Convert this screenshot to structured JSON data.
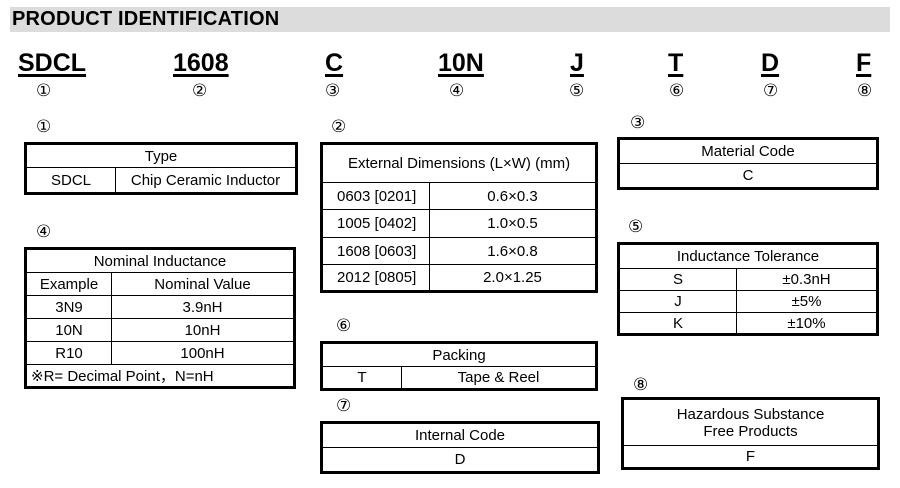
{
  "title": "PRODUCT IDENTIFICATION",
  "codes": [
    {
      "code": "SDCL",
      "num": "①"
    },
    {
      "code": "1608",
      "num": "②"
    },
    {
      "code": "C",
      "num": "③"
    },
    {
      "code": "10N",
      "num": "④"
    },
    {
      "code": "J",
      "num": "⑤"
    },
    {
      "code": "T",
      "num": "⑥"
    },
    {
      "code": "D",
      "num": "⑦"
    },
    {
      "code": "F",
      "num": "⑧"
    }
  ],
  "type": {
    "num": "①",
    "header": "Type",
    "code": "SDCL",
    "desc": "Chip Ceramic Inductor"
  },
  "dimensions": {
    "num": "②",
    "header": "External Dimensions (L×W) (mm)",
    "rows": [
      [
        "0603 [0201]",
        "0.6×0.3"
      ],
      [
        "1005 [0402]",
        "1.0×0.5"
      ],
      [
        "1608 [0603]",
        "1.6×0.8"
      ],
      [
        "2012 [0805]",
        "2.0×1.25"
      ]
    ]
  },
  "material": {
    "num": "③",
    "header": "Material Code",
    "value": "C"
  },
  "inductance": {
    "num": "④",
    "header": "Nominal Inductance",
    "col1": "Example",
    "col2": "Nominal Value",
    "rows": [
      [
        "3N9",
        "3.9nH"
      ],
      [
        "10N",
        "10nH"
      ],
      [
        "R10",
        "100nH"
      ]
    ],
    "note": "※R= Decimal Point，N=nH"
  },
  "tolerance": {
    "num": "⑤",
    "header": "Inductance Tolerance",
    "rows": [
      [
        "S",
        "±0.3nH"
      ],
      [
        "J",
        "±5%"
      ],
      [
        "K",
        "±10%"
      ]
    ]
  },
  "packing": {
    "num": "⑥",
    "header": "Packing",
    "code": "T",
    "desc": "Tape & Reel"
  },
  "internal": {
    "num": "⑦",
    "header": "Internal Code",
    "value": "D"
  },
  "hazard": {
    "num": "⑧",
    "header1": "Hazardous Substance",
    "header2": "Free Products",
    "value": "F"
  }
}
